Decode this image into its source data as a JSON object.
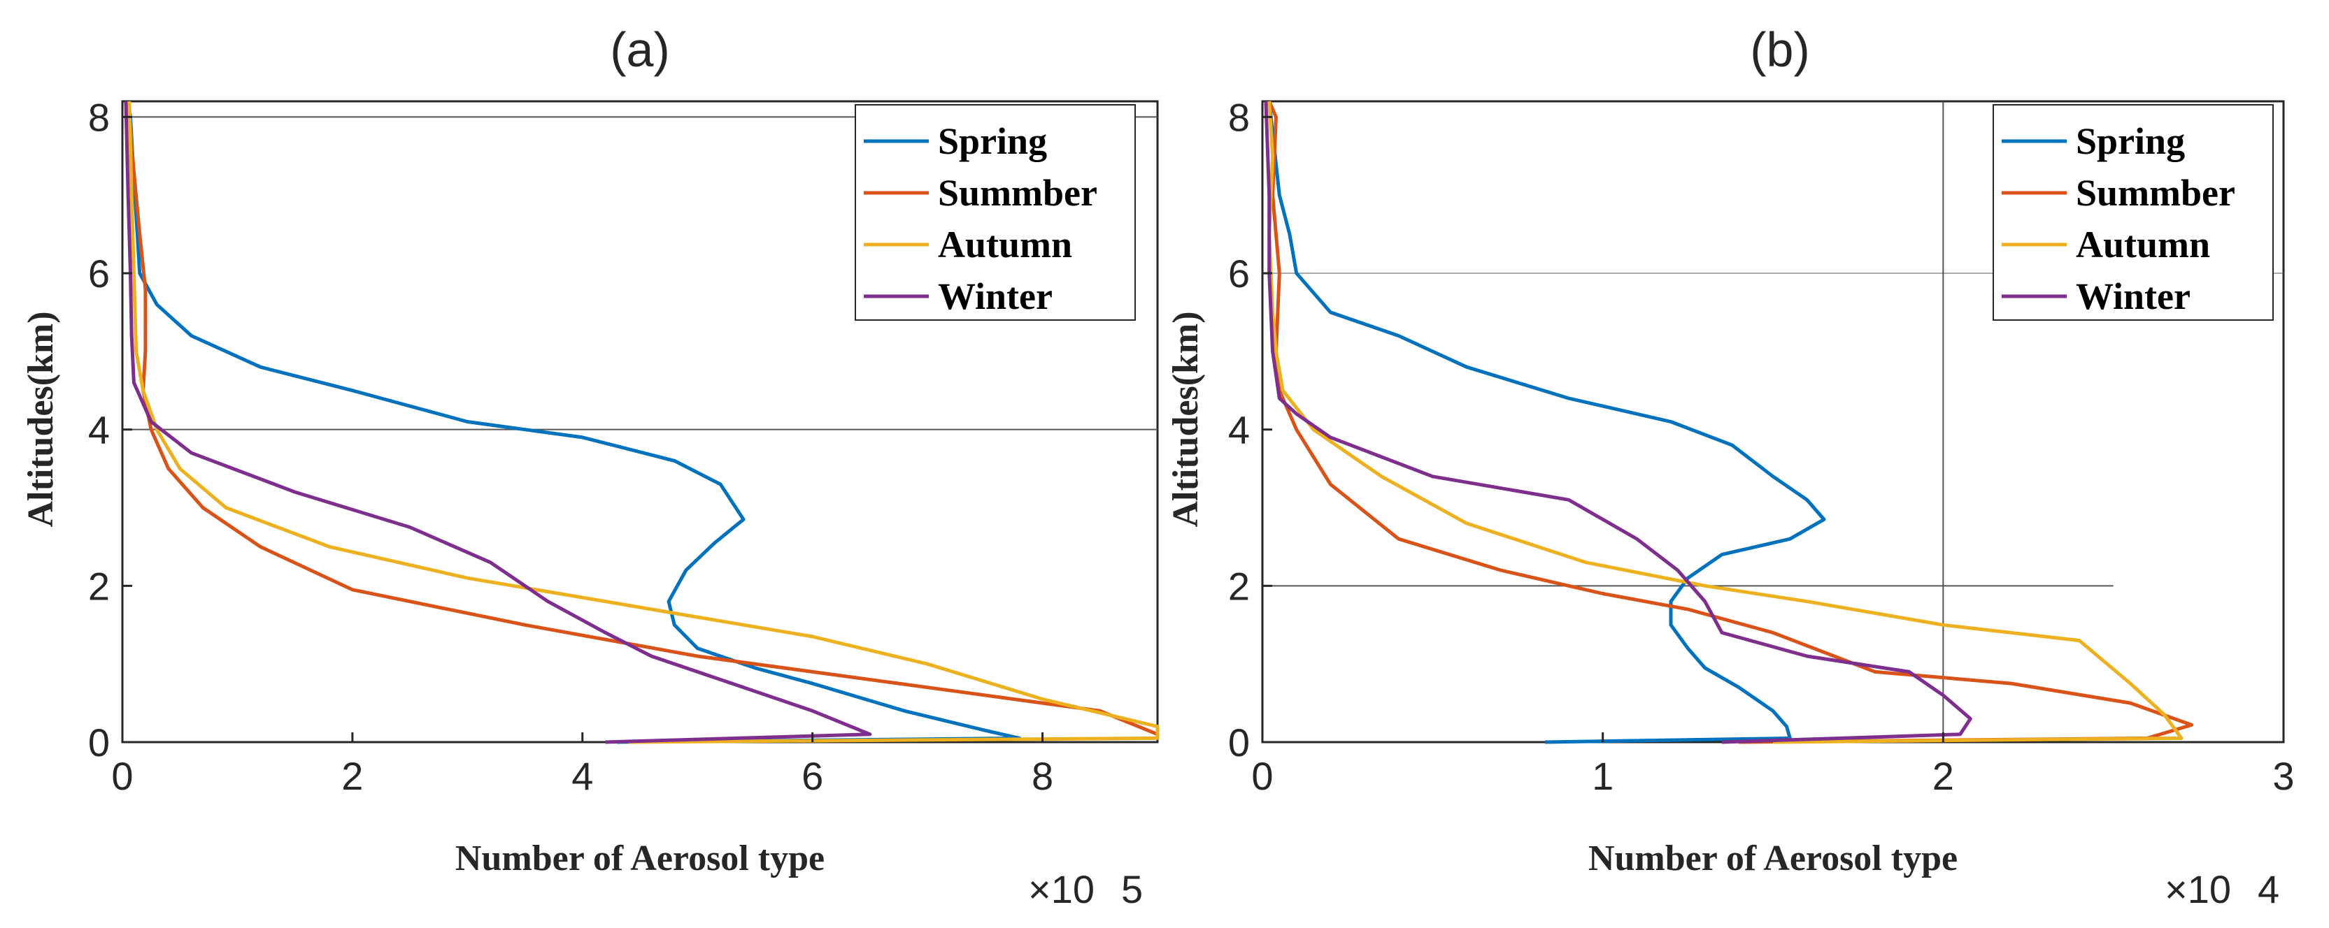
{
  "chart_data": [
    {
      "type": "line",
      "title": "(a)",
      "xlabel": "Number of Aerosol type",
      "ylabel": "Altitudes(km)",
      "x_multiplier": "×10",
      "x_multiplier_exp": "5",
      "xlim": [
        0,
        9
      ],
      "ylim": [
        0,
        8.2
      ],
      "xticks": [
        0,
        2,
        4,
        6,
        8
      ],
      "yticks": [
        0,
        2,
        4,
        6,
        8
      ],
      "xtick_labels": [
        "0",
        "2",
        "4",
        "6",
        "8"
      ],
      "ytick_labels": [
        "0",
        "2",
        "4",
        "6",
        "8"
      ],
      "reference_lines": [
        4,
        8
      ],
      "legend_position": "top-right",
      "series": [
        {
          "name": "Spring",
          "color": "#0072BD",
          "points": [
            [
              4.3,
              0.0
            ],
            [
              7.8,
              0.05
            ],
            [
              7.5,
              0.15
            ],
            [
              6.8,
              0.4
            ],
            [
              6.0,
              0.75
            ],
            [
              5.5,
              0.95
            ],
            [
              5.0,
              1.2
            ],
            [
              4.8,
              1.5
            ],
            [
              4.75,
              1.8
            ],
            [
              4.9,
              2.2
            ],
            [
              5.15,
              2.55
            ],
            [
              5.4,
              2.85
            ],
            [
              5.2,
              3.3
            ],
            [
              4.8,
              3.6
            ],
            [
              4.0,
              3.9
            ],
            [
              3.0,
              4.1
            ],
            [
              2.0,
              4.5
            ],
            [
              1.2,
              4.8
            ],
            [
              0.6,
              5.2
            ],
            [
              0.3,
              5.6
            ],
            [
              0.15,
              6.0
            ],
            [
              0.13,
              6.5
            ],
            [
              0.1,
              7.2
            ],
            [
              0.07,
              8.0
            ],
            [
              0.05,
              8.2
            ]
          ]
        },
        {
          "name": "Summber",
          "color": "#D95319",
          "points": [
            [
              9.0,
              0.1
            ],
            [
              8.5,
              0.4
            ],
            [
              7.0,
              0.7
            ],
            [
              5.0,
              1.1
            ],
            [
              3.5,
              1.5
            ],
            [
              2.0,
              1.95
            ],
            [
              1.2,
              2.5
            ],
            [
              0.7,
              3.0
            ],
            [
              0.4,
              3.5
            ],
            [
              0.25,
              4.0
            ],
            [
              0.18,
              4.5
            ],
            [
              0.2,
              5.0
            ],
            [
              0.2,
              5.5
            ],
            [
              0.2,
              5.8
            ],
            [
              0.15,
              6.5
            ],
            [
              0.1,
              7.3
            ],
            [
              0.05,
              8.2
            ]
          ]
        },
        {
          "name": "Autumn",
          "color": "#EDB120",
          "points": [
            [
              4.4,
              0.0
            ],
            [
              9.0,
              0.05
            ],
            [
              9.0,
              0.2
            ],
            [
              8.0,
              0.55
            ],
            [
              7.0,
              1.0
            ],
            [
              6.0,
              1.35
            ],
            [
              5.0,
              1.6
            ],
            [
              4.0,
              1.85
            ],
            [
              3.0,
              2.1
            ],
            [
              1.8,
              2.5
            ],
            [
              0.9,
              3.0
            ],
            [
              0.5,
              3.5
            ],
            [
              0.3,
              4.0
            ],
            [
              0.18,
              4.5
            ],
            [
              0.12,
              5.0
            ],
            [
              0.1,
              6.0
            ],
            [
              0.08,
              7.0
            ],
            [
              0.06,
              8.2
            ]
          ]
        },
        {
          "name": "Winter",
          "color": "#7E2F8E",
          "points": [
            [
              4.2,
              0.0
            ],
            [
              6.5,
              0.1
            ],
            [
              6.0,
              0.4
            ],
            [
              5.2,
              0.8
            ],
            [
              4.6,
              1.1
            ],
            [
              4.2,
              1.4
            ],
            [
              3.7,
              1.8
            ],
            [
              3.2,
              2.3
            ],
            [
              2.5,
              2.75
            ],
            [
              1.5,
              3.2
            ],
            [
              0.6,
              3.7
            ],
            [
              0.25,
              4.1
            ],
            [
              0.1,
              4.6
            ],
            [
              0.08,
              5.2
            ],
            [
              0.07,
              6.0
            ],
            [
              0.05,
              7.0
            ],
            [
              0.03,
              8.2
            ]
          ]
        }
      ]
    },
    {
      "type": "line",
      "title": "(b)",
      "xlabel": "Number of Aerosol type",
      "ylabel": "Altitudes(km)",
      "x_multiplier": "×10",
      "x_multiplier_exp": "4",
      "xlim": [
        0,
        3
      ],
      "ylim": [
        0,
        8.2
      ],
      "xticks": [
        0,
        1,
        2,
        3
      ],
      "yticks": [
        0,
        2,
        4,
        6,
        8
      ],
      "xtick_labels": [
        "0",
        "1",
        "2",
        "3"
      ],
      "ytick_labels": [
        "0",
        "2",
        "4",
        "6",
        "8"
      ],
      "reference_lines": [
        2,
        6
      ],
      "reference_vline": 2,
      "legend_position": "top-right",
      "series": [
        {
          "name": "Spring",
          "color": "#0072BD",
          "points": [
            [
              0.83,
              0.0
            ],
            [
              1.55,
              0.05
            ],
            [
              1.54,
              0.2
            ],
            [
              1.5,
              0.4
            ],
            [
              1.4,
              0.7
            ],
            [
              1.3,
              0.95
            ],
            [
              1.25,
              1.2
            ],
            [
              1.2,
              1.5
            ],
            [
              1.2,
              1.8
            ],
            [
              1.25,
              2.1
            ],
            [
              1.35,
              2.4
            ],
            [
              1.55,
              2.6
            ],
            [
              1.65,
              2.85
            ],
            [
              1.6,
              3.1
            ],
            [
              1.5,
              3.4
            ],
            [
              1.38,
              3.8
            ],
            [
              1.2,
              4.1
            ],
            [
              0.9,
              4.4
            ],
            [
              0.6,
              4.8
            ],
            [
              0.4,
              5.2
            ],
            [
              0.2,
              5.5
            ],
            [
              0.1,
              6.0
            ],
            [
              0.08,
              6.5
            ],
            [
              0.05,
              7.0
            ],
            [
              0.02,
              8.2
            ]
          ]
        },
        {
          "name": "Summber",
          "color": "#D95319",
          "points": [
            [
              1.4,
              0.0
            ],
            [
              2.6,
              0.05
            ],
            [
              2.73,
              0.22
            ],
            [
              2.55,
              0.5
            ],
            [
              2.2,
              0.75
            ],
            [
              1.8,
              0.9
            ],
            [
              1.5,
              1.4
            ],
            [
              1.25,
              1.7
            ],
            [
              1.0,
              1.9
            ],
            [
              0.7,
              2.2
            ],
            [
              0.4,
              2.6
            ],
            [
              0.2,
              3.3
            ],
            [
              0.1,
              4.0
            ],
            [
              0.05,
              4.5
            ],
            [
              0.04,
              5.0
            ],
            [
              0.05,
              6.0
            ],
            [
              0.03,
              7.0
            ],
            [
              0.04,
              8.0
            ],
            [
              0.02,
              8.2
            ]
          ]
        },
        {
          "name": "Autumn",
          "color": "#EDB120",
          "points": [
            [
              1.5,
              0.0
            ],
            [
              2.7,
              0.05
            ],
            [
              2.65,
              0.35
            ],
            [
              2.55,
              0.75
            ],
            [
              2.4,
              1.3
            ],
            [
              2.0,
              1.5
            ],
            [
              1.6,
              1.8
            ],
            [
              1.3,
              2.0
            ],
            [
              0.95,
              2.3
            ],
            [
              0.6,
              2.8
            ],
            [
              0.35,
              3.4
            ],
            [
              0.15,
              4.0
            ],
            [
              0.06,
              4.5
            ],
            [
              0.04,
              5.0
            ],
            [
              0.03,
              5.5
            ],
            [
              0.02,
              6.5
            ],
            [
              0.03,
              7.5
            ],
            [
              0.02,
              8.2
            ]
          ]
        },
        {
          "name": "Winter",
          "color": "#7E2F8E",
          "points": [
            [
              1.35,
              0.0
            ],
            [
              2.05,
              0.1
            ],
            [
              2.08,
              0.3
            ],
            [
              2.0,
              0.6
            ],
            [
              1.9,
              0.9
            ],
            [
              1.6,
              1.1
            ],
            [
              1.35,
              1.4
            ],
            [
              1.3,
              1.8
            ],
            [
              1.22,
              2.2
            ],
            [
              1.1,
              2.6
            ],
            [
              0.9,
              3.1
            ],
            [
              0.5,
              3.4
            ],
            [
              0.2,
              3.9
            ],
            [
              0.1,
              4.2
            ],
            [
              0.05,
              4.4
            ],
            [
              0.03,
              5.0
            ],
            [
              0.02,
              6.0
            ],
            [
              0.02,
              7.0
            ],
            [
              0.01,
              8.2
            ]
          ]
        }
      ]
    }
  ]
}
